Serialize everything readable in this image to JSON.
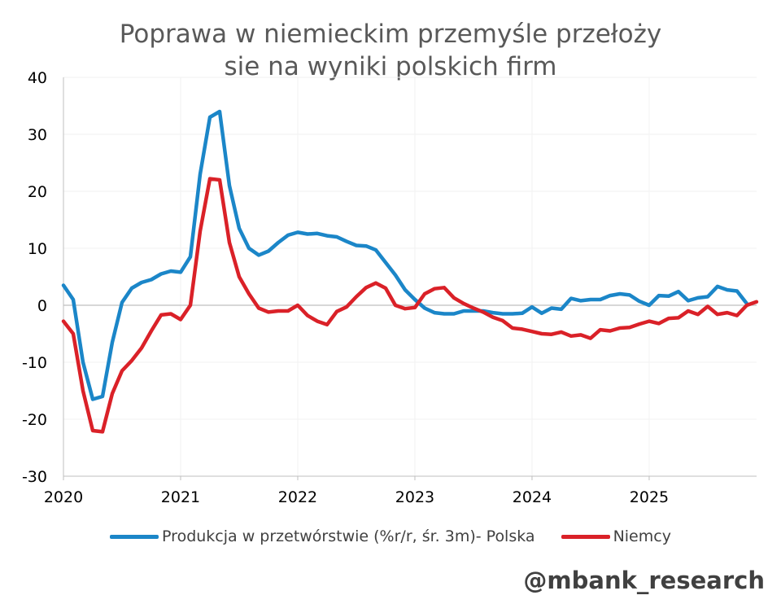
{
  "chart_data": {
    "type": "line",
    "title": [
      "Poprawa w niemieckim przemyśle przełoży",
      "sie na wyniki polskich firm"
    ],
    "xlabel": "",
    "ylabel": "",
    "ylim": [
      -30,
      40
    ],
    "yticks": [
      -30,
      -20,
      -10,
      0,
      10,
      20,
      30,
      40
    ],
    "xlim": [
      2020.0,
      2025.917
    ],
    "xticks": [
      2020,
      2021,
      2022,
      2023,
      2024,
      2025
    ],
    "xtick_labels": [
      "2020",
      "2021",
      "2022",
      "2023",
      "2024",
      "2025"
    ],
    "grid": true,
    "legend_position": "bottom",
    "series": [
      {
        "name": "Produkcja w przetwórstwie (%r/r, śr. 3m)- Polska",
        "color": "#1B86C8",
        "x_start": 2020.0,
        "x_step": 0.08333,
        "values": [
          3.5,
          1.0,
          -10.0,
          -16.5,
          -16.0,
          -6.5,
          0.5,
          3.0,
          4.0,
          4.5,
          5.5,
          6.0,
          5.8,
          8.5,
          23.0,
          33.0,
          34.0,
          21.0,
          13.5,
          10.0,
          8.8,
          9.5,
          11.0,
          12.3,
          12.8,
          12.5,
          12.6,
          12.2,
          12.0,
          11.2,
          10.5,
          10.4,
          9.7,
          7.5,
          5.3,
          2.7,
          1.0,
          -0.5,
          -1.3,
          -1.5,
          -1.5,
          -1.0,
          -1.0,
          -1.0,
          -1.3,
          -1.5,
          -1.5,
          -1.4,
          -0.3,
          -1.4,
          -0.5,
          -0.7,
          1.2,
          0.8,
          1.0,
          1.0,
          1.7,
          2.0,
          1.8,
          0.7,
          0.0,
          1.7,
          1.6,
          2.4,
          0.8,
          1.3,
          1.5,
          3.3,
          2.7,
          2.5,
          0.3
        ]
      },
      {
        "name": "Niemcy",
        "color": "#DA2128",
        "x_start": 2020.0,
        "x_step": 0.08333,
        "values": [
          -2.8,
          -5.0,
          -15.0,
          -22.0,
          -22.2,
          -15.5,
          -11.5,
          -9.7,
          -7.5,
          -4.5,
          -1.7,
          -1.5,
          -2.5,
          0.0,
          13.0,
          22.2,
          22.0,
          11.0,
          5.0,
          2.0,
          -0.5,
          -1.2,
          -1.0,
          -1.0,
          0.0,
          -1.8,
          -2.8,
          -3.4,
          -1.1,
          -0.3,
          1.5,
          3.1,
          3.9,
          3.0,
          0.0,
          -0.6,
          -0.4,
          2.0,
          2.9,
          3.1,
          1.3,
          0.3,
          -0.5,
          -1.2,
          -2.1,
          -2.7,
          -4.0,
          -4.2,
          -4.6,
          -5.0,
          -5.1,
          -4.7,
          -5.4,
          -5.2,
          -5.8,
          -4.3,
          -4.5,
          -4.0,
          -3.9,
          -3.3,
          -2.8,
          -3.2,
          -2.3,
          -2.2,
          -1.0,
          -1.6,
          -0.2,
          -1.6,
          -1.3,
          -1.8,
          0.0,
          0.6
        ]
      }
    ]
  },
  "watermark": "@mbank_research",
  "colors": {
    "axis": "#BFBFBF",
    "grid": "#F2F2F2"
  }
}
